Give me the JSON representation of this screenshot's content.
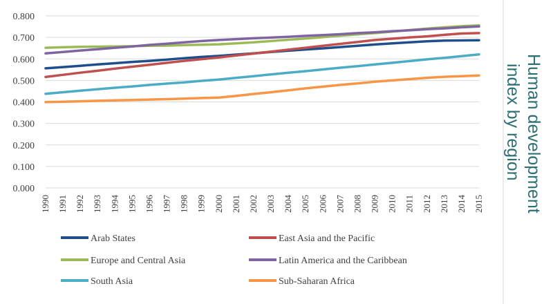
{
  "chart_data": {
    "type": "line",
    "title": "Human development index by region",
    "title_lines": [
      "Human development",
      "index by region"
    ],
    "xlabel": "",
    "ylabel": "",
    "ylim": [
      0,
      0.8
    ],
    "yticks": [
      "0.000",
      "0.100",
      "0.200",
      "0.300",
      "0.400",
      "0.500",
      "0.600",
      "0.700",
      "0.800"
    ],
    "grid": true,
    "legend_position": "bottom",
    "x": [
      "1990",
      "1991",
      "1992",
      "1993",
      "1994",
      "1995",
      "1996",
      "1997",
      "1998",
      "1999",
      "2000",
      "2001",
      "2002",
      "2003",
      "2004",
      "2005",
      "2006",
      "2007",
      "2008",
      "2009",
      "2010",
      "2011",
      "2012",
      "2013",
      "2014",
      "2015"
    ],
    "series": [
      {
        "name": "Arab States",
        "color": "#1f4e8c",
        "values": [
          0.556,
          0.562,
          0.568,
          0.574,
          0.58,
          0.586,
          0.591,
          0.597,
          0.603,
          0.609,
          0.614,
          0.62,
          0.626,
          0.632,
          0.638,
          0.644,
          0.649,
          0.655,
          0.661,
          0.667,
          0.672,
          0.677,
          0.682,
          0.685,
          0.686,
          0.687
        ]
      },
      {
        "name": "East Asia and the Pacific",
        "color": "#c0504d",
        "values": [
          0.516,
          0.526,
          0.536,
          0.545,
          0.555,
          0.564,
          0.573,
          0.582,
          0.591,
          0.599,
          0.607,
          0.616,
          0.625,
          0.634,
          0.643,
          0.652,
          0.661,
          0.67,
          0.679,
          0.688,
          0.694,
          0.7,
          0.705,
          0.712,
          0.718,
          0.72
        ]
      },
      {
        "name": "Europe and Central Asia",
        "color": "#9bbb59",
        "values": [
          0.652,
          0.654,
          0.656,
          0.657,
          0.658,
          0.659,
          0.661,
          0.662,
          0.664,
          0.666,
          0.668,
          0.672,
          0.677,
          0.683,
          0.689,
          0.695,
          0.701,
          0.708,
          0.714,
          0.72,
          0.727,
          0.734,
          0.741,
          0.747,
          0.752,
          0.756
        ]
      },
      {
        "name": "Latin America and the Caribbean",
        "color": "#8064a2",
        "values": [
          0.626,
          0.632,
          0.639,
          0.645,
          0.652,
          0.658,
          0.665,
          0.671,
          0.677,
          0.683,
          0.688,
          0.692,
          0.696,
          0.699,
          0.703,
          0.707,
          0.711,
          0.715,
          0.72,
          0.724,
          0.729,
          0.733,
          0.738,
          0.742,
          0.747,
          0.751
        ]
      },
      {
        "name": "South Asia",
        "color": "#4bacc6",
        "values": [
          0.438,
          0.445,
          0.452,
          0.459,
          0.466,
          0.472,
          0.479,
          0.485,
          0.491,
          0.498,
          0.504,
          0.512,
          0.52,
          0.528,
          0.536,
          0.543,
          0.551,
          0.559,
          0.566,
          0.574,
          0.582,
          0.59,
          0.598,
          0.605,
          0.613,
          0.621
        ]
      },
      {
        "name": "Sub-Saharan Africa",
        "color": "#f79646",
        "values": [
          0.399,
          0.401,
          0.403,
          0.405,
          0.407,
          0.409,
          0.411,
          0.413,
          0.415,
          0.418,
          0.42,
          0.428,
          0.437,
          0.445,
          0.454,
          0.463,
          0.471,
          0.479,
          0.486,
          0.494,
          0.5,
          0.506,
          0.512,
          0.517,
          0.52,
          0.523
        ]
      }
    ]
  }
}
